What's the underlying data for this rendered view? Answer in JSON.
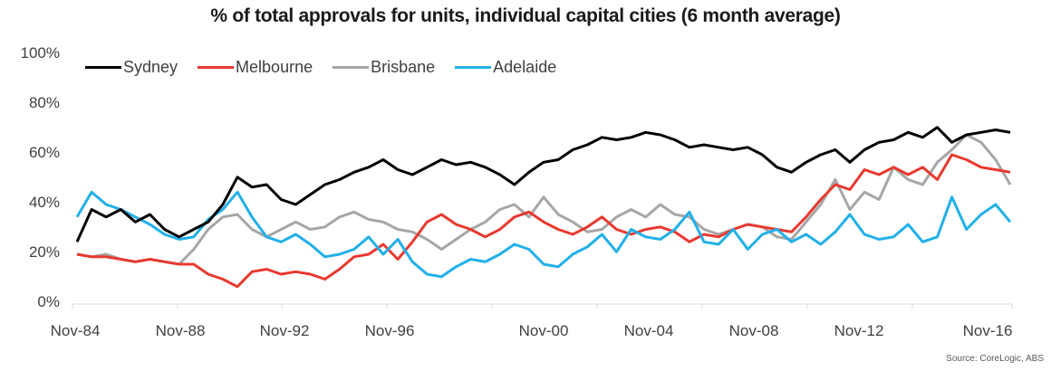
{
  "chart_data": {
    "type": "line",
    "title": "% of total approvals for units, individual capital cities (6 month average)",
    "xlabel": "",
    "ylabel": "",
    "ylim": [
      0,
      100
    ],
    "yticks": [
      "0%",
      "20%",
      "40%",
      "60%",
      "80%",
      "100%"
    ],
    "xticks": [
      "Nov-84",
      "Nov-88",
      "Nov-92",
      "Nov-96",
      "Nov-00",
      "Nov-04",
      "Nov-08",
      "Nov-12",
      "Nov-16"
    ],
    "x_start": "Nov-84",
    "x_end": "Nov-16",
    "x_step": "6 months",
    "grid": false,
    "legend_position": "top-left",
    "source": "Source: CoreLogic, ABS",
    "series": [
      {
        "name": "Sydney",
        "color": "#000000",
        "values": [
          25,
          38,
          35,
          38,
          33,
          36,
          30,
          27,
          30,
          33,
          40,
          51,
          47,
          48,
          42,
          40,
          44,
          48,
          50,
          53,
          55,
          58,
          54,
          52,
          55,
          58,
          56,
          57,
          55,
          52,
          48,
          53,
          57,
          58,
          62,
          64,
          67,
          66,
          67,
          69,
          68,
          66,
          63,
          64,
          63,
          62,
          63,
          60,
          55,
          53,
          57,
          60,
          62,
          57,
          62,
          65,
          66,
          69,
          67,
          71,
          65,
          68,
          69,
          70,
          69
        ]
      },
      {
        "name": "Melbourne",
        "color": "#e8392f",
        "values": [
          20,
          19,
          19,
          18,
          17,
          18,
          17,
          16,
          16,
          12,
          10,
          7,
          13,
          14,
          12,
          13,
          12,
          10,
          14,
          19,
          20,
          24,
          18,
          25,
          33,
          36,
          32,
          30,
          27,
          30,
          35,
          37,
          33,
          30,
          28,
          31,
          35,
          30,
          28,
          30,
          31,
          29,
          25,
          28,
          27,
          30,
          32,
          31,
          30,
          29,
          35,
          42,
          48,
          46,
          54,
          52,
          55,
          52,
          55,
          50,
          60,
          58,
          55,
          54,
          53
        ]
      },
      {
        "name": "Brisbane",
        "color": "#a6a6a6",
        "values": [
          20,
          19,
          20,
          18,
          17,
          18,
          17,
          16,
          22,
          30,
          35,
          36,
          30,
          27,
          30,
          33,
          30,
          31,
          35,
          37,
          34,
          33,
          30,
          29,
          26,
          22,
          26,
          30,
          33,
          38,
          40,
          35,
          43,
          36,
          33,
          29,
          30,
          35,
          38,
          35,
          40,
          36,
          35,
          30,
          28,
          30,
          32,
          31,
          27,
          26,
          33,
          40,
          50,
          38,
          45,
          42,
          55,
          50,
          48,
          57,
          62,
          68,
          65,
          58,
          48
        ]
      },
      {
        "name": "Adelaide",
        "color": "#21b0ea",
        "values": [
          35,
          45,
          40,
          38,
          35,
          32,
          28,
          26,
          27,
          34,
          38,
          45,
          35,
          27,
          25,
          28,
          24,
          19,
          20,
          22,
          27,
          20,
          26,
          17,
          12,
          11,
          15,
          18,
          17,
          20,
          24,
          22,
          16,
          15,
          20,
          23,
          28,
          21,
          30,
          27,
          26,
          30,
          37,
          25,
          24,
          30,
          22,
          28,
          30,
          25,
          28,
          24,
          29,
          36,
          28,
          26,
          27,
          32,
          25,
          27,
          43,
          30,
          36,
          40,
          33
        ]
      }
    ]
  }
}
